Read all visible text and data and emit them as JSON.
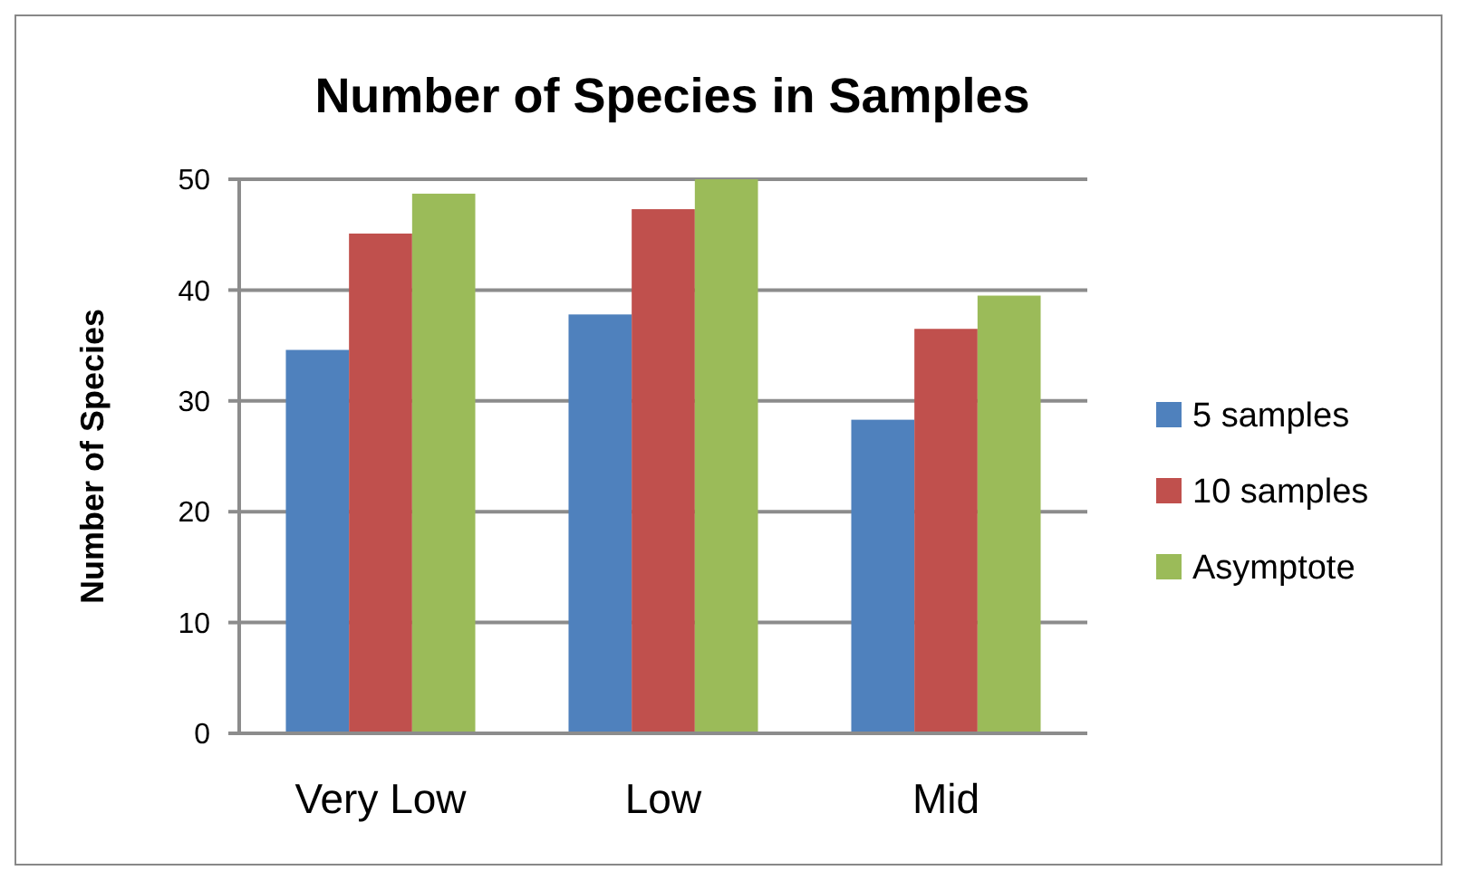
{
  "chart_data": {
    "type": "bar",
    "title": "Number of Species in Samples",
    "ylabel": "Number of Species",
    "categories": [
      "Very Low",
      "Low",
      "Mid"
    ],
    "series": [
      {
        "name": "5 samples",
        "color": "#4f81bd",
        "values": [
          34.6,
          37.8,
          28.3
        ]
      },
      {
        "name": "10 samples",
        "color": "#c0504d",
        "values": [
          45.1,
          47.3,
          36.5
        ]
      },
      {
        "name": "Asymptote",
        "color": "#9bbb59",
        "values": [
          48.7,
          50,
          39.5
        ]
      }
    ],
    "ylim": [
      0,
      50
    ],
    "yticks": [
      0,
      10,
      20,
      30,
      40,
      50
    ],
    "grid": "y",
    "legend": "right"
  }
}
